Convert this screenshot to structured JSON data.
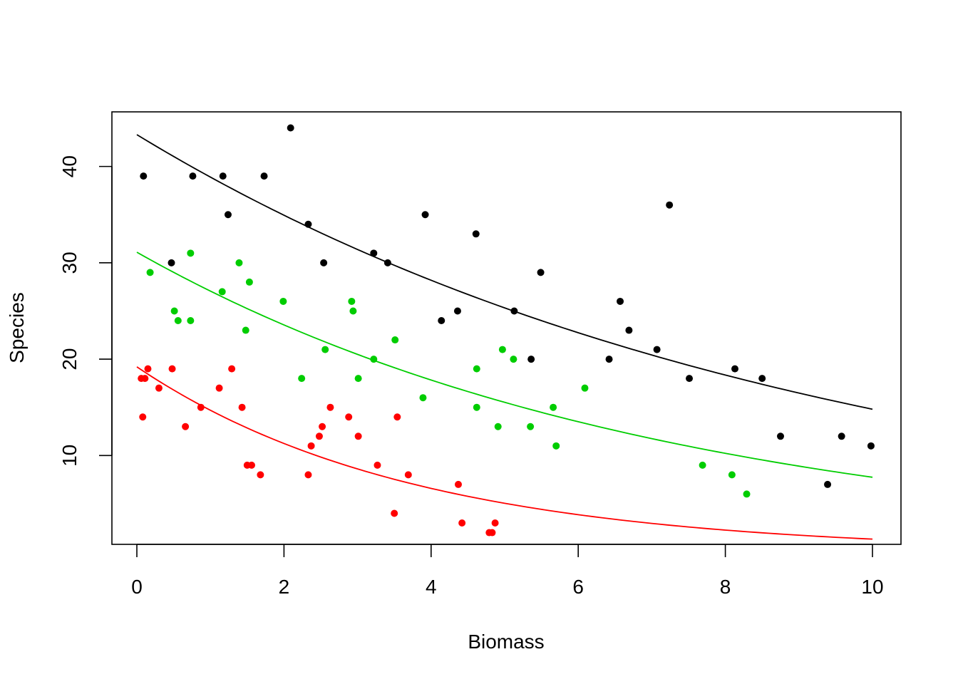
{
  "chart_data": {
    "type": "scatter",
    "xlabel": "Biomass",
    "ylabel": "Species",
    "xlim": [
      0,
      10
    ],
    "ylim": [
      1.3,
      45
    ],
    "x_ticks": [
      0,
      2,
      4,
      6,
      8,
      10
    ],
    "y_ticks": [
      10,
      20,
      30,
      40
    ],
    "legend": "none",
    "grid": false,
    "series": [
      {
        "color": "#000000",
        "points": [
          [
            0.09,
            39
          ],
          [
            0.47,
            30
          ],
          [
            0.76,
            39
          ],
          [
            1.17,
            39
          ],
          [
            1.24,
            35
          ],
          [
            1.73,
            39
          ],
          [
            2.09,
            44
          ],
          [
            2.33,
            34
          ],
          [
            2.54,
            30
          ],
          [
            3.22,
            31
          ],
          [
            3.41,
            30
          ],
          [
            3.92,
            35
          ],
          [
            4.14,
            24
          ],
          [
            4.36,
            25
          ],
          [
            4.61,
            33
          ],
          [
            5.13,
            25
          ],
          [
            5.36,
            20
          ],
          [
            5.49,
            29
          ],
          [
            6.42,
            20
          ],
          [
            6.57,
            26
          ],
          [
            6.69,
            23
          ],
          [
            7.07,
            21
          ],
          [
            7.24,
            36
          ],
          [
            7.51,
            18
          ],
          [
            8.13,
            19
          ],
          [
            8.5,
            18
          ],
          [
            8.75,
            12
          ],
          [
            9.39,
            7
          ],
          [
            9.58,
            12
          ],
          [
            9.98,
            11
          ]
        ],
        "fit": {
          "intercept": 43.3,
          "rate": 0.1073
        }
      },
      {
        "color": "#00CD00",
        "points": [
          [
            0.18,
            29
          ],
          [
            0.51,
            25
          ],
          [
            0.56,
            24
          ],
          [
            0.73,
            31
          ],
          [
            0.73,
            24
          ],
          [
            1.16,
            27
          ],
          [
            1.39,
            30
          ],
          [
            1.48,
            23
          ],
          [
            1.53,
            28
          ],
          [
            1.99,
            26
          ],
          [
            2.24,
            18
          ],
          [
            2.56,
            21
          ],
          [
            2.92,
            26
          ],
          [
            2.94,
            25
          ],
          [
            3.01,
            18
          ],
          [
            3.22,
            20
          ],
          [
            3.51,
            22
          ],
          [
            3.89,
            16
          ],
          [
            4.62,
            19
          ],
          [
            4.62,
            15
          ],
          [
            4.91,
            13
          ],
          [
            4.97,
            21
          ],
          [
            5.12,
            20
          ],
          [
            5.35,
            13
          ],
          [
            5.66,
            15
          ],
          [
            5.7,
            11
          ],
          [
            6.09,
            17
          ],
          [
            7.69,
            9
          ],
          [
            8.09,
            8
          ],
          [
            8.29,
            6
          ]
        ],
        "fit": {
          "intercept": 31.1,
          "rate": 0.139
        }
      },
      {
        "color": "#FF0000",
        "points": [
          [
            0.06,
            18
          ],
          [
            0.08,
            14
          ],
          [
            0.11,
            18
          ],
          [
            0.15,
            19
          ],
          [
            0.3,
            17
          ],
          [
            0.48,
            19
          ],
          [
            0.66,
            13
          ],
          [
            0.87,
            15
          ],
          [
            1.12,
            17
          ],
          [
            1.29,
            19
          ],
          [
            1.43,
            15
          ],
          [
            1.5,
            9
          ],
          [
            1.56,
            9
          ],
          [
            1.68,
            8
          ],
          [
            2.33,
            8
          ],
          [
            2.37,
            11
          ],
          [
            2.48,
            12
          ],
          [
            2.52,
            13
          ],
          [
            2.63,
            15
          ],
          [
            2.88,
            14
          ],
          [
            3.01,
            12
          ],
          [
            3.27,
            9
          ],
          [
            3.5,
            4
          ],
          [
            3.54,
            14
          ],
          [
            3.69,
            8
          ],
          [
            4.37,
            7
          ],
          [
            4.42,
            3
          ],
          [
            4.79,
            2
          ],
          [
            4.83,
            2
          ],
          [
            4.87,
            3
          ]
        ],
        "fit": {
          "intercept": 19.2,
          "rate": 0.2673
        }
      }
    ]
  }
}
